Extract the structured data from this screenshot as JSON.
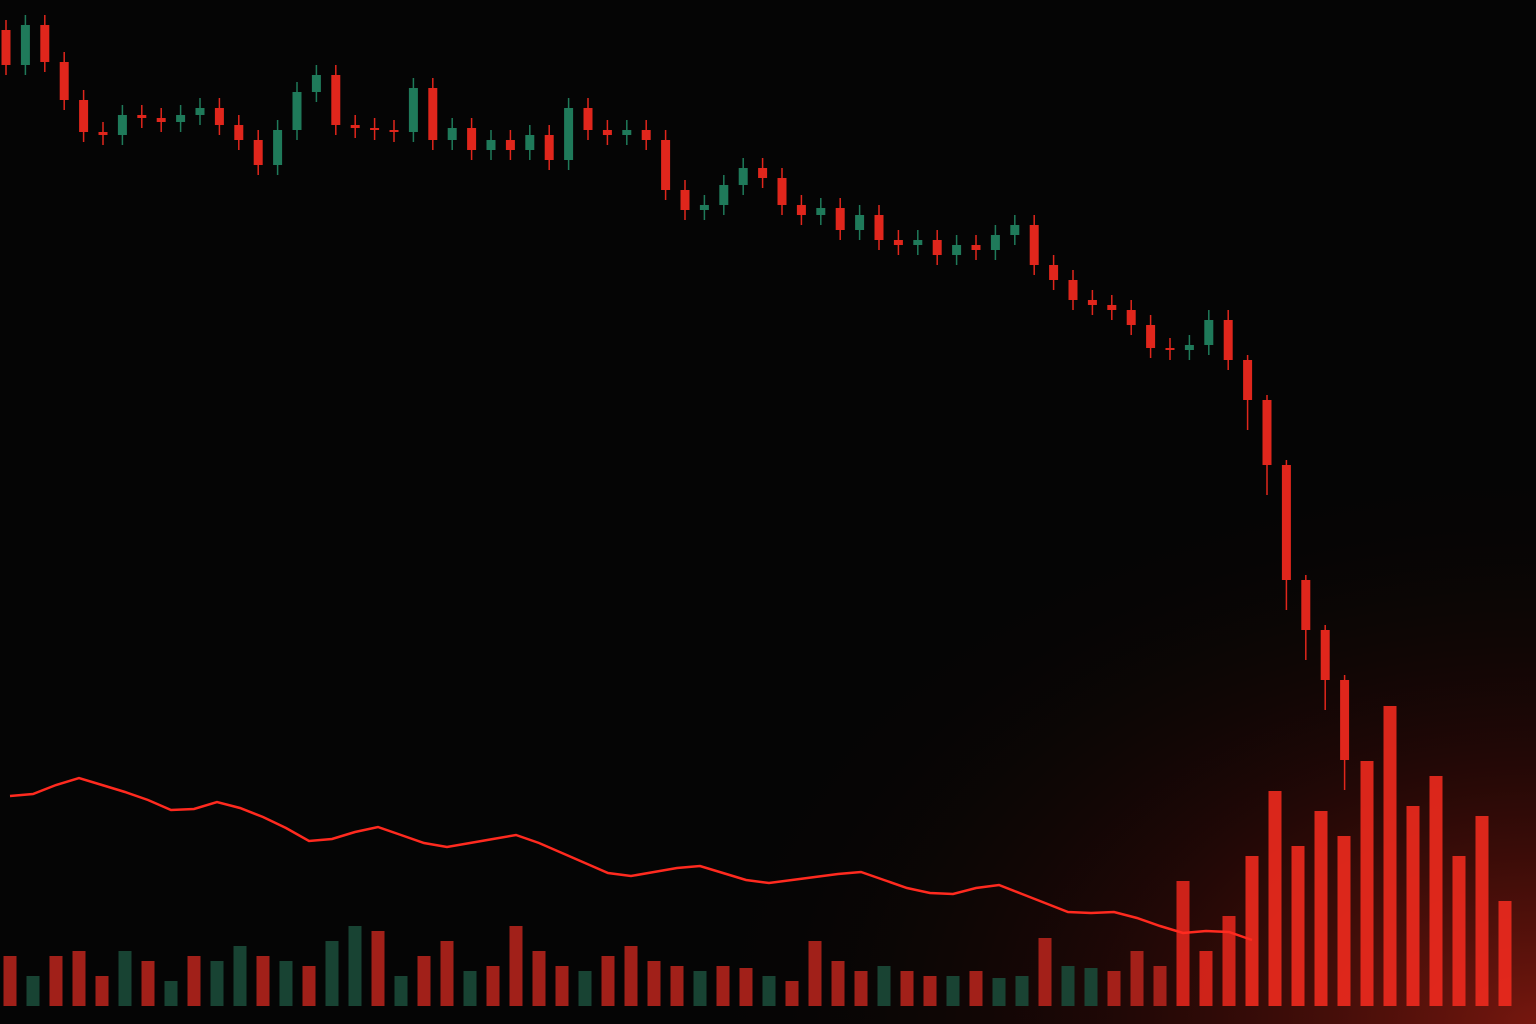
{
  "chart_data": {
    "type": "candlestick",
    "ylim": [
      0,
      1024
    ],
    "up_color": "#1f7a5a",
    "down_color": "#e0261c",
    "open": [
      994,
      959,
      999,
      962,
      924,
      892,
      889,
      909,
      906,
      902,
      909,
      916,
      899,
      884,
      859,
      894,
      932,
      949,
      899,
      896,
      894,
      892,
      936,
      884,
      896,
      874,
      884,
      874,
      889,
      864,
      916,
      894,
      889,
      894,
      884,
      834,
      814,
      819,
      839,
      856,
      846,
      819,
      809,
      816,
      794,
      809,
      784,
      779,
      784,
      769,
      779,
      774,
      789,
      799,
      759,
      744,
      724,
      719,
      714,
      699,
      676,
      674,
      679,
      704,
      664,
      624,
      559,
      444,
      394,
      344
    ],
    "high": [
      1004,
      1009,
      1009,
      972,
      934,
      902,
      919,
      919,
      916,
      919,
      926,
      926,
      909,
      894,
      904,
      942,
      959,
      959,
      909,
      906,
      904,
      946,
      946,
      906,
      906,
      894,
      894,
      899,
      899,
      926,
      926,
      904,
      904,
      904,
      894,
      844,
      829,
      849,
      866,
      866,
      856,
      829,
      826,
      826,
      819,
      819,
      794,
      794,
      794,
      789,
      789,
      799,
      809,
      809,
      769,
      754,
      734,
      729,
      724,
      709,
      686,
      689,
      714,
      714,
      669,
      629,
      564,
      449,
      399,
      349
    ],
    "low": [
      949,
      949,
      952,
      914,
      882,
      879,
      879,
      896,
      892,
      892,
      899,
      889,
      874,
      849,
      849,
      884,
      922,
      889,
      886,
      884,
      882,
      882,
      874,
      874,
      864,
      864,
      864,
      864,
      854,
      854,
      884,
      879,
      879,
      874,
      824,
      804,
      804,
      809,
      829,
      836,
      809,
      799,
      799,
      784,
      784,
      774,
      769,
      769,
      759,
      759,
      764,
      764,
      779,
      749,
      734,
      714,
      709,
      704,
      689,
      666,
      664,
      664,
      669,
      654,
      594,
      529,
      414,
      364,
      314,
      234
    ],
    "close": [
      959,
      999,
      962,
      924,
      892,
      889,
      909,
      906,
      902,
      909,
      916,
      899,
      884,
      859,
      894,
      932,
      949,
      899,
      896,
      894,
      892,
      936,
      884,
      896,
      874,
      884,
      874,
      889,
      864,
      916,
      894,
      889,
      894,
      884,
      834,
      814,
      819,
      839,
      856,
      846,
      819,
      809,
      816,
      794,
      809,
      784,
      779,
      784,
      769,
      779,
      774,
      789,
      799,
      759,
      744,
      724,
      719,
      714,
      699,
      676,
      674,
      679,
      704,
      664,
      624,
      559,
      444,
      394,
      344,
      264
    ],
    "volume": {
      "ylim": [
        0,
        320
      ],
      "values": [
        50,
        30,
        50,
        55,
        30,
        55,
        45,
        25,
        50,
        45,
        60,
        50,
        45,
        40,
        65,
        80,
        75,
        30,
        50,
        65,
        35,
        40,
        80,
        55,
        40,
        35,
        50,
        60,
        45,
        40,
        35,
        40,
        38,
        30,
        25,
        65,
        45,
        35,
        40,
        35,
        30,
        30,
        35,
        28,
        30,
        68,
        40,
        38,
        35,
        55,
        40,
        125,
        55,
        90,
        150,
        215,
        160,
        195,
        170,
        245,
        300,
        200,
        230,
        150,
        190,
        105
      ],
      "colors": [
        "#b3231c",
        "#1b4a38",
        "#b3231c",
        "#b3231c",
        "#b3231c",
        "#1b4a38",
        "#b3231c",
        "#1b4a38",
        "#b3231c",
        "#1b4a38",
        "#1b4a38",
        "#b3231c",
        "#1b4a38",
        "#b3231c",
        "#1b4a38",
        "#1b4a38",
        "#b3231c",
        "#1b4a38",
        "#b3231c",
        "#b3231c",
        "#1b4a38",
        "#b3231c",
        "#b3231c",
        "#b3231c",
        "#b3231c",
        "#1b4a38",
        "#b3231c",
        "#b3231c",
        "#b3231c",
        "#b3231c",
        "#1b4a38",
        "#b3231c",
        "#b3231c",
        "#1b4a38",
        "#b3231c",
        "#b3231c",
        "#b3231c",
        "#b3231c",
        "#1b4a38",
        "#b3231c",
        "#b3231c",
        "#1b4a38",
        "#b3231c",
        "#1b4a38",
        "#1b4a38",
        "#b3231c",
        "#1b4a38",
        "#1b4a38",
        "#b3231c",
        "#b3231c",
        "#b3231c",
        "#e0261c",
        "#e0261c",
        "#e0261c",
        "#ee2a1e",
        "#ee2a1e",
        "#ee2a1e",
        "#ee2a1e",
        "#ee2a1e",
        "#ee2a1e",
        "#ee2a1e",
        "#ee2a1e",
        "#ee2a1e",
        "#ee2a1e",
        "#ee2a1e",
        "#ee2a1e"
      ]
    },
    "line": {
      "color": "#ff2a1f",
      "values": [
        210,
        212,
        221,
        228,
        221,
        214,
        206,
        196,
        197,
        204,
        198,
        189,
        178,
        165,
        167,
        174,
        179,
        171,
        163,
        159,
        163,
        167,
        171,
        163,
        153,
        143,
        133,
        130,
        134,
        138,
        140,
        133,
        126,
        123,
        126,
        129,
        132,
        134,
        126,
        118,
        113,
        112,
        118,
        121,
        112,
        103,
        94,
        93,
        94,
        88,
        80,
        73,
        75,
        74,
        66,
        null,
        null,
        null,
        null,
        null,
        null,
        null,
        null,
        null,
        null,
        null
      ]
    }
  }
}
